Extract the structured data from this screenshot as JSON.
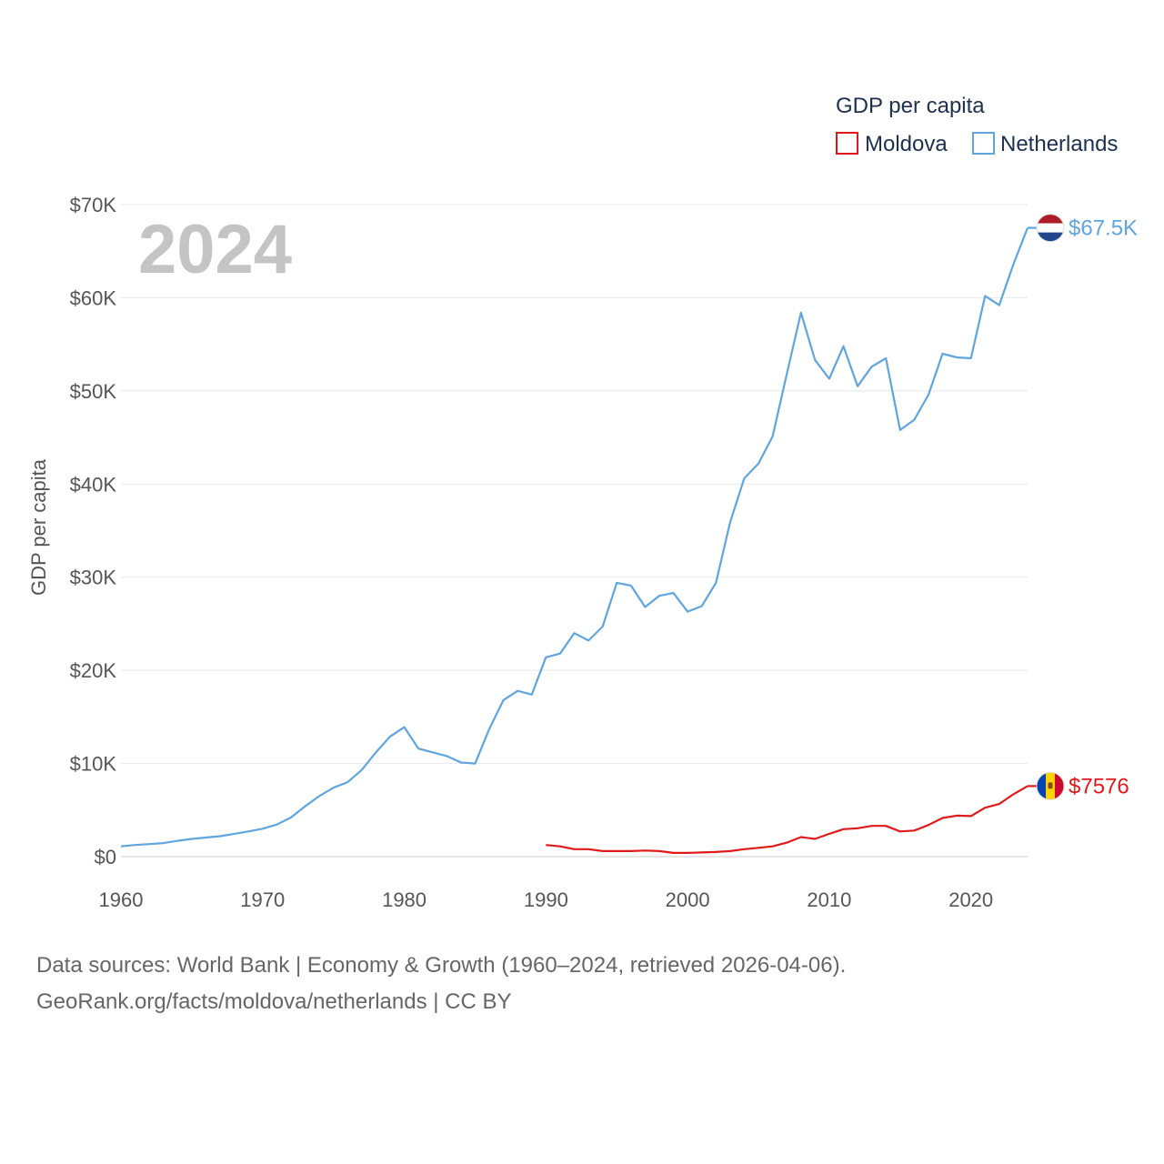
{
  "chart_data": {
    "type": "line",
    "title": "",
    "ylabel": "GDP per capita",
    "xlabel": "",
    "year_label": "2024",
    "xlim": [
      1960,
      2024
    ],
    "ylim": [
      0,
      70000
    ],
    "x_ticks": [
      "1960",
      "1970",
      "1980",
      "1990",
      "2000",
      "2010",
      "2020"
    ],
    "x_tick_values": [
      1960,
      1970,
      1980,
      1990,
      2000,
      2010,
      2020
    ],
    "y_ticks": [
      "$0",
      "$10K",
      "$20K",
      "$30K",
      "$40K",
      "$50K",
      "$60K",
      "$70K"
    ],
    "y_tick_values": [
      0,
      10000,
      20000,
      30000,
      40000,
      50000,
      60000,
      70000
    ],
    "legend": {
      "title": "GDP per capita",
      "position": "top-right",
      "entries": [
        "Moldova",
        "Netherlands"
      ]
    },
    "series": [
      {
        "name": "Netherlands",
        "color": "#5fa5e0",
        "end_label": "$67.5K",
        "flag": "netherlands-flag",
        "x": [
          1960,
          1961,
          1962,
          1963,
          1964,
          1965,
          1966,
          1967,
          1968,
          1969,
          1970,
          1971,
          1972,
          1973,
          1974,
          1975,
          1976,
          1977,
          1978,
          1979,
          1980,
          1981,
          1982,
          1983,
          1984,
          1985,
          1986,
          1987,
          1988,
          1989,
          1990,
          1991,
          1992,
          1993,
          1994,
          1995,
          1996,
          1997,
          1998,
          1999,
          2000,
          2001,
          2002,
          2003,
          2004,
          2005,
          2006,
          2007,
          2008,
          2009,
          2010,
          2011,
          2012,
          2013,
          2014,
          2015,
          2016,
          2017,
          2018,
          2019,
          2020,
          2021,
          2022,
          2023,
          2024
        ],
        "values": [
          1100,
          1250,
          1350,
          1450,
          1700,
          1900,
          2050,
          2200,
          2450,
          2700,
          3000,
          3450,
          4200,
          5400,
          6500,
          7400,
          8000,
          9300,
          11200,
          12900,
          13900,
          11600,
          11200,
          10800,
          10100,
          10000,
          13700,
          16800,
          17800,
          17400,
          21400,
          21800,
          24000,
          23200,
          24700,
          29400,
          29100,
          26800,
          28000,
          28300,
          26300,
          26900,
          29400,
          35900,
          40600,
          42200,
          45100,
          51800,
          58400,
          53300,
          51300,
          54800,
          50500,
          52600,
          53500,
          45800,
          46900,
          49600,
          54000,
          53600,
          53500,
          60200,
          59200,
          63600,
          67500
        ]
      },
      {
        "name": "Moldova",
        "color": "#e01a1a",
        "end_label": "$7576",
        "flag": "moldova-flag",
        "x": [
          1990,
          1991,
          1992,
          1993,
          1994,
          1995,
          1996,
          1997,
          1998,
          1999,
          2000,
          2001,
          2002,
          2003,
          2004,
          2005,
          2006,
          2007,
          2008,
          2009,
          2010,
          2011,
          2012,
          2013,
          2014,
          2015,
          2016,
          2017,
          2018,
          2019,
          2020,
          2021,
          2022,
          2023,
          2024
        ],
        "values": [
          1250,
          1100,
          800,
          800,
          600,
          600,
          600,
          650,
          600,
          400,
          400,
          450,
          500,
          600,
          800,
          950,
          1100,
          1500,
          2100,
          1900,
          2450,
          2950,
          3050,
          3300,
          3300,
          2700,
          2800,
          3400,
          4150,
          4400,
          4350,
          5250,
          5650,
          6700,
          7576
        ]
      }
    ]
  },
  "footer": {
    "source_line1": "Data sources: World Bank | Economy & Growth (1960–2024, retrieved 2026-04-06).",
    "source_line2": "GeoRank.org/facts/moldova/netherlands | CC BY"
  }
}
